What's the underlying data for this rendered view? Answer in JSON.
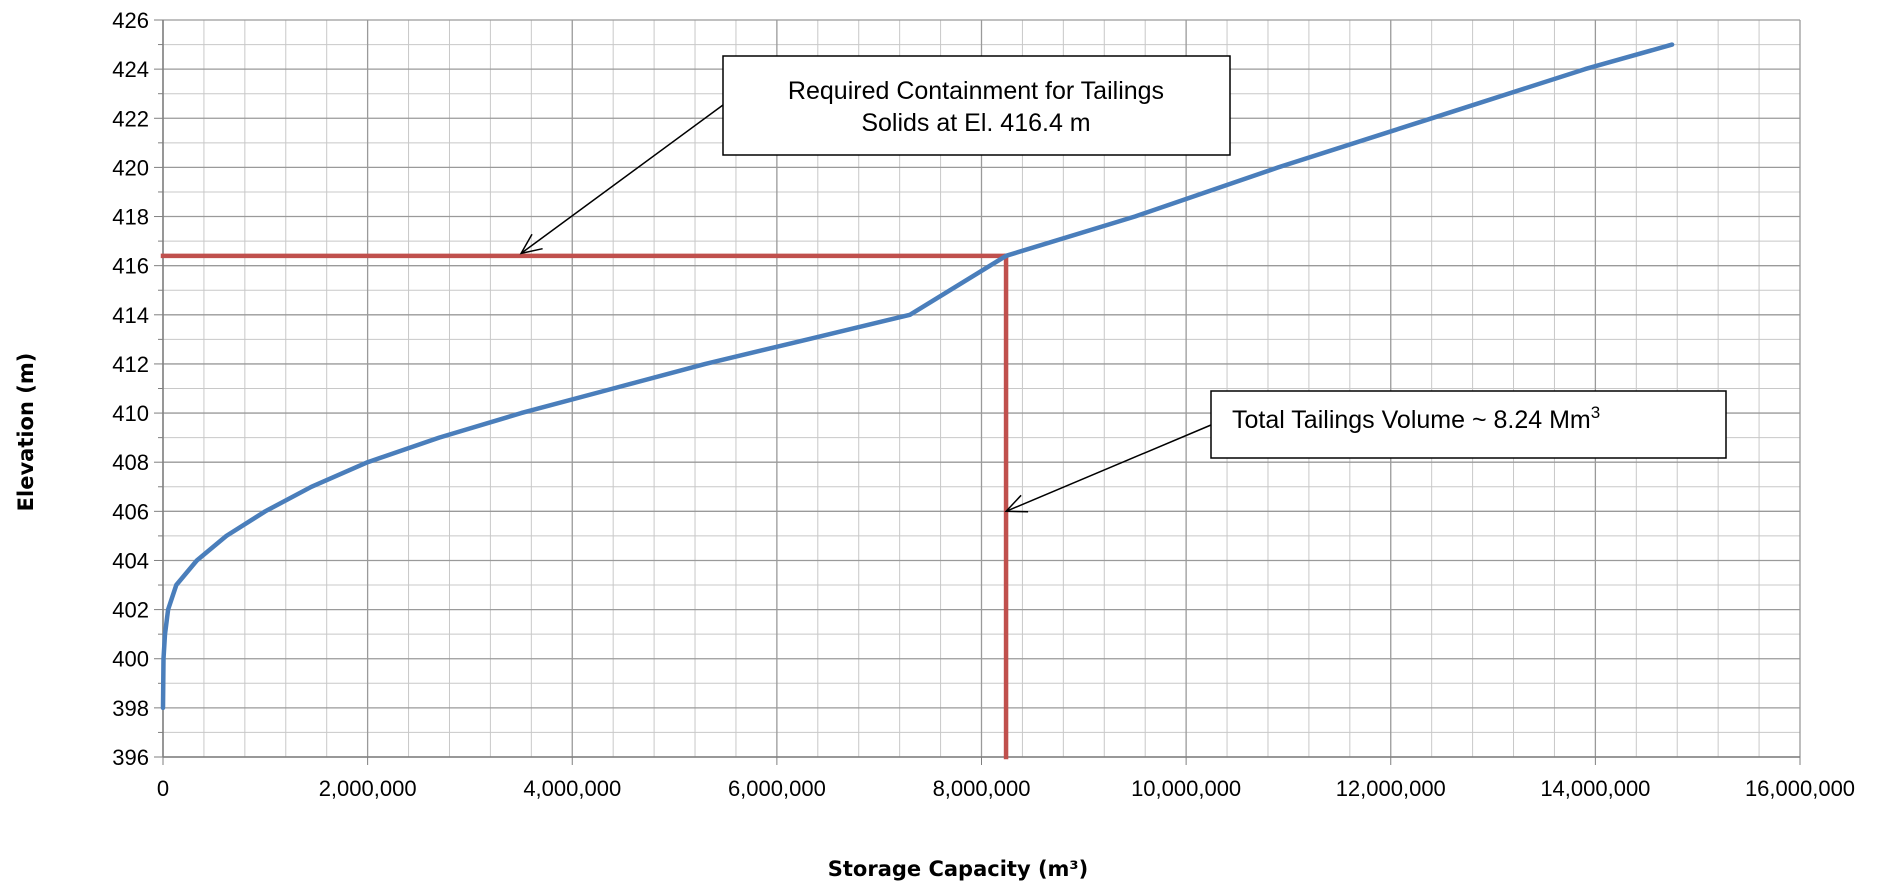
{
  "chart_data": {
    "type": "line",
    "xlabel": "Storage Capacity (m³)",
    "ylabel": "Elevation (m)",
    "xlim": [
      0,
      16000000
    ],
    "ylim": [
      396,
      426
    ],
    "x_major_step": 2000000,
    "x_minor_step": 400000,
    "y_major_step": 2,
    "y_minor_step": 1,
    "grid": true,
    "x_tick_labels": [
      "0",
      "2,000,000",
      "4,000,000",
      "6,000,000",
      "8,000,000",
      "10,000,000",
      "12,000,000",
      "14,000,000",
      "16,000,000"
    ],
    "y_tick_labels": [
      "396",
      "398",
      "400",
      "402",
      "404",
      "406",
      "408",
      "410",
      "412",
      "414",
      "416",
      "418",
      "420",
      "422",
      "424",
      "426"
    ],
    "series": [
      {
        "color": "#4a7ebb",
        "x": [
          0,
          5000,
          20000,
          50000,
          130000,
          330000,
          620000,
          1000000,
          1450000,
          2000000,
          2700000,
          3500000,
          4400000,
          5300000,
          6300000,
          7300000,
          8240000,
          9500000,
          10900000,
          12400000,
          13900000,
          14750000
        ],
        "y": [
          398,
          400,
          401,
          402,
          403,
          404,
          405,
          406,
          407,
          408,
          409,
          410,
          411,
          412,
          413,
          414,
          416.4,
          418,
          420,
          422,
          424,
          425
        ]
      }
    ],
    "reference_lines": [
      {
        "color": "#c0504d",
        "x": [
          0,
          8240000
        ],
        "y": [
          416.4,
          416.4
        ]
      },
      {
        "color": "#c0504d",
        "x": [
          8240000,
          8240000
        ],
        "y": [
          416.4,
          396
        ]
      }
    ],
    "annotations": [
      {
        "lines": [
          "Required Containment for Tailings",
          "Solids at El. 416.4 m"
        ],
        "arrow_x": 3500000,
        "arrow_y": 416.5
      },
      {
        "text": "Total Tailings Volume ~ 8.24 Mm",
        "superscript": "3",
        "arrow_x": 8240000,
        "arrow_y": 406
      }
    ]
  }
}
